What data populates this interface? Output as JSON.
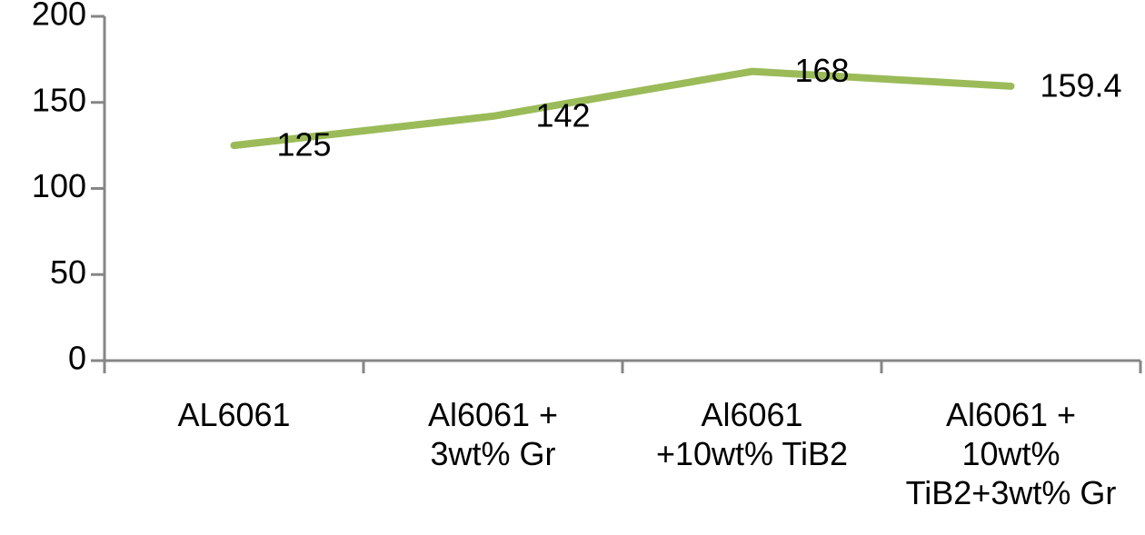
{
  "chart_data": {
    "type": "line",
    "categories": [
      "AL6061",
      "Al6061 +\n3wt% Gr",
      "Al6061\n+10wt% TiB2",
      "Al6061 +\n10wt%\nTiB2+3wt% Gr"
    ],
    "series": [
      {
        "color": "#9bbb59",
        "values": [
          125,
          142,
          168,
          159.4
        ]
      }
    ],
    "ylim": [
      0,
      200
    ],
    "yticks": [
      0,
      50,
      100,
      150,
      200
    ]
  }
}
